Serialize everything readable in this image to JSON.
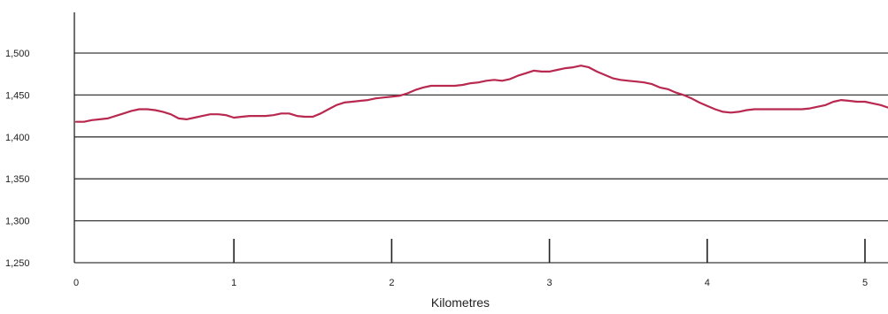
{
  "chart_data": {
    "type": "line",
    "title": "",
    "xlabel": "Kilometres",
    "ylabel": "",
    "xlim": [
      0,
      5.15
    ],
    "ylim": [
      1250,
      1500
    ],
    "x_ticks": [
      "0",
      "1",
      "2",
      "3",
      "4",
      "5"
    ],
    "y_ticks": [
      "1,250",
      "1,300",
      "1,350",
      "1,400",
      "1,450",
      "1,500"
    ],
    "grid": true,
    "line_color": "#b8284f",
    "series": [
      {
        "x": [
          0,
          0.05,
          0.1,
          0.15,
          0.2,
          0.25,
          0.3,
          0.35,
          0.4,
          0.45,
          0.5,
          0.55,
          0.6,
          0.65,
          0.7,
          0.75,
          0.8,
          0.85,
          0.9,
          0.95,
          1.0,
          1.05,
          1.1,
          1.15,
          1.2,
          1.25,
          1.3,
          1.35,
          1.4,
          1.45,
          1.5,
          1.55,
          1.6,
          1.65,
          1.7,
          1.75,
          1.8,
          1.85,
          1.9,
          1.95,
          2.0,
          2.05,
          2.1,
          2.15,
          2.2,
          2.25,
          2.3,
          2.35,
          2.4,
          2.45,
          2.5,
          2.55,
          2.6,
          2.65,
          2.7,
          2.75,
          2.8,
          2.85,
          2.9,
          2.95,
          3.0,
          3.05,
          3.1,
          3.15,
          3.2,
          3.25,
          3.3,
          3.35,
          3.4,
          3.45,
          3.5,
          3.55,
          3.6,
          3.65,
          3.7,
          3.75,
          3.8,
          3.85,
          3.9,
          3.95,
          4.0,
          4.05,
          4.1,
          4.15,
          4.2,
          4.25,
          4.3,
          4.35,
          4.4,
          4.45,
          4.5,
          4.55,
          4.6,
          4.65,
          4.7,
          4.75,
          4.8,
          4.85,
          4.9,
          4.95,
          5.0,
          5.05,
          5.1,
          5.15
        ],
        "values": [
          1418,
          1418,
          1420,
          1421,
          1422,
          1425,
          1428,
          1431,
          1433,
          1433,
          1432,
          1430,
          1427,
          1422,
          1421,
          1423,
          1425,
          1427,
          1427,
          1426,
          1423,
          1424,
          1425,
          1425,
          1425,
          1426,
          1428,
          1428,
          1425,
          1424,
          1424,
          1428,
          1433,
          1438,
          1441,
          1442,
          1443,
          1444,
          1446,
          1447,
          1448,
          1449,
          1452,
          1456,
          1459,
          1461,
          1461,
          1461,
          1461,
          1462,
          1464,
          1465,
          1467,
          1468,
          1467,
          1469,
          1473,
          1476,
          1479,
          1478,
          1478,
          1480,
          1482,
          1483,
          1485,
          1483,
          1478,
          1474,
          1470,
          1468,
          1467,
          1466,
          1465,
          1463,
          1459,
          1457,
          1453,
          1450,
          1446,
          1441,
          1437,
          1433,
          1430,
          1429,
          1430,
          1432,
          1433,
          1433,
          1433,
          1433,
          1433,
          1433,
          1433,
          1434,
          1436,
          1438,
          1442,
          1444,
          1443,
          1442,
          1442,
          1440,
          1438,
          1435
        ]
      }
    ]
  }
}
